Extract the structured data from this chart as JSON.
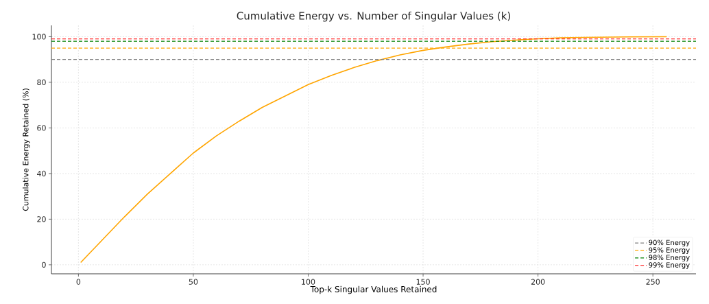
{
  "chart_data": {
    "type": "line",
    "title": "Cumulative Energy vs. Number of Singular Values (k)",
    "xlabel": "Top-k Singular Values Retained",
    "ylabel": "Cumulative Energy Retained (%)",
    "x": [
      1,
      10,
      20,
      30,
      40,
      50,
      60,
      70,
      80,
      90,
      100,
      110,
      120,
      130,
      140,
      150,
      160,
      170,
      180,
      190,
      200,
      210,
      220,
      230,
      240,
      256
    ],
    "series": [
      {
        "color": "#ffa500",
        "values": [
          1,
          10.5,
          21,
          31,
          40,
          49,
          56.5,
          63,
          69,
          74,
          79,
          83,
          86.5,
          89.5,
          92,
          94,
          95.5,
          96.8,
          97.8,
          98.5,
          99.1,
          99.5,
          99.7,
          99.8,
          99.9,
          100
        ]
      }
    ],
    "xlim": [
      -11.75,
      268.75
    ],
    "ylim": [
      -3.95,
      104.95
    ],
    "xticks": [
      0,
      50,
      100,
      150,
      200,
      250
    ],
    "yticks": [
      0,
      20,
      40,
      60,
      80,
      100
    ],
    "ref_lines": [
      {
        "axis": "y",
        "value": 90,
        "label": "90% Energy",
        "color": "#808080",
        "line_style": "dashed"
      },
      {
        "axis": "y",
        "value": 95,
        "label": "95% Energy",
        "color": "#ffa500",
        "line_style": "dashed"
      },
      {
        "axis": "y",
        "value": 98,
        "label": "98% Energy",
        "color": "#008000",
        "line_style": "dashed"
      },
      {
        "axis": "y",
        "value": 99,
        "label": "99% Energy",
        "color": "#ff0000",
        "line_style": "dashed"
      }
    ],
    "grid": true,
    "legend": "bottom right",
    "marker": "none",
    "line_style": "solid"
  }
}
